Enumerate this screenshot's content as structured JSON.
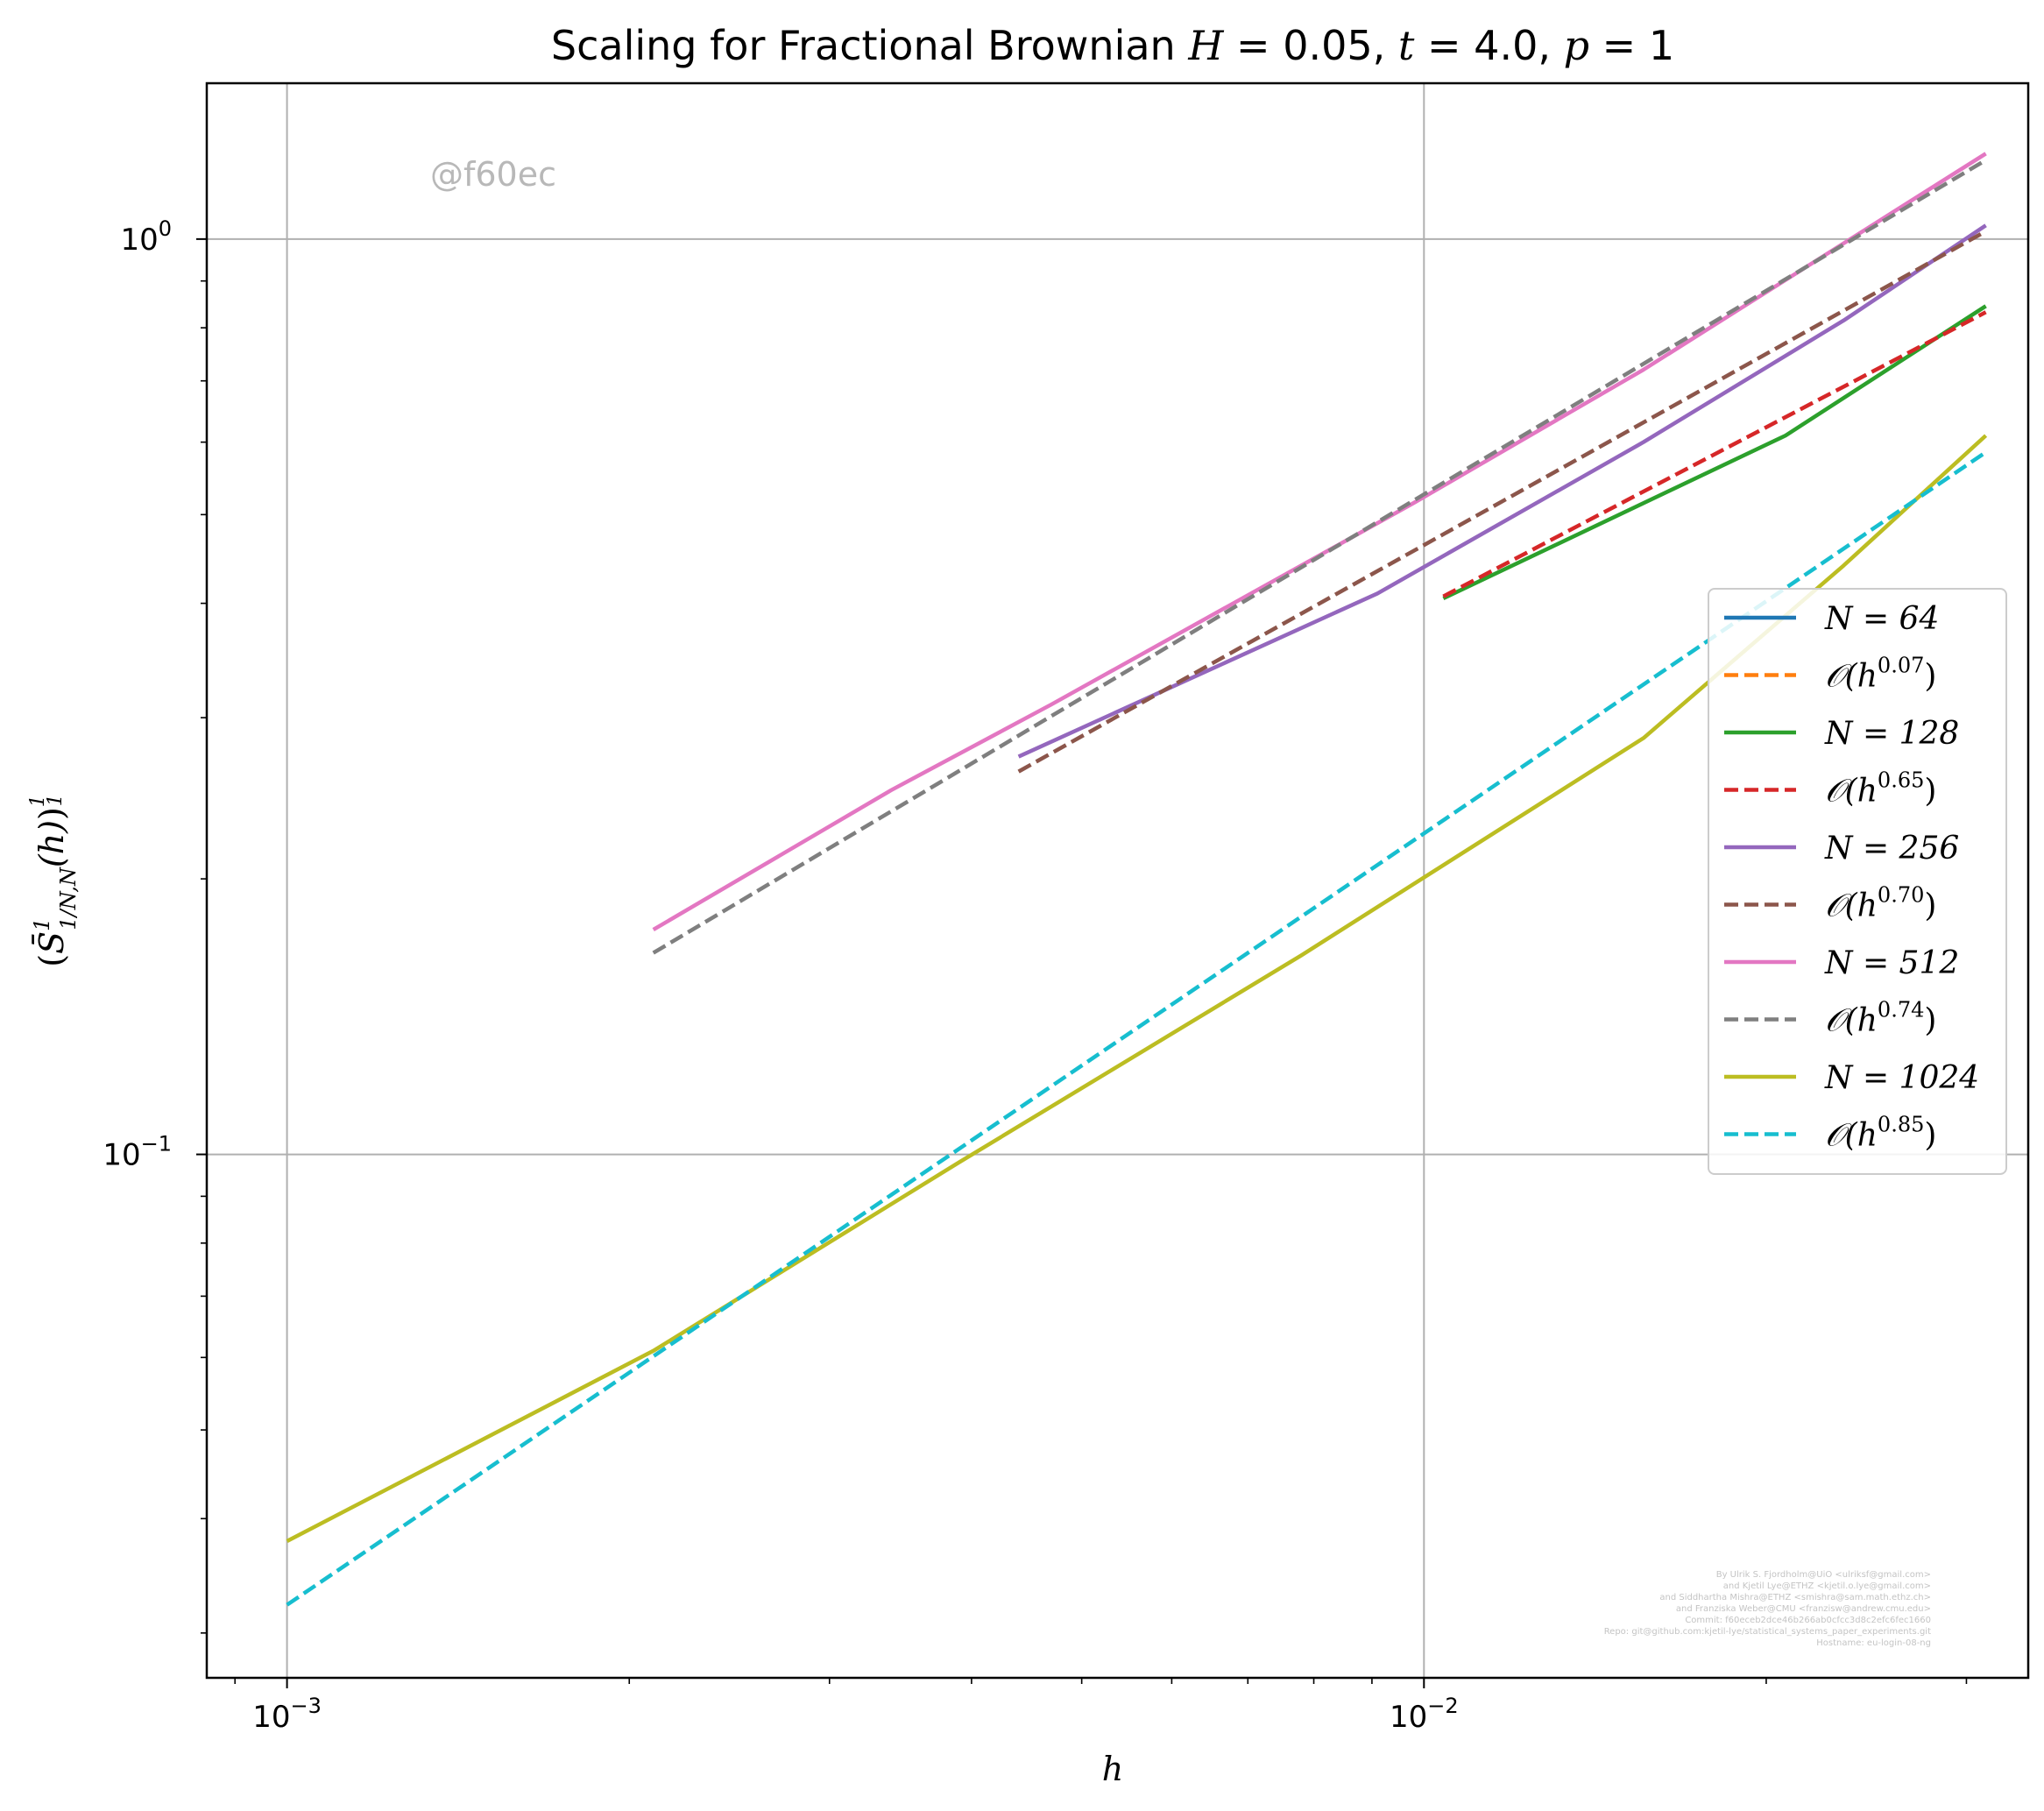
{
  "chart_data": {
    "type": "line",
    "title": "Scaling for Fractional Brownian H = 0.05, t = 4.0, p = 1",
    "xlabel": "h",
    "ylabel": "(S̄¹₁/N,N(h))^(1/1)",
    "xscale": "log",
    "yscale": "log",
    "xlim": [
      0.00085,
      0.034
    ],
    "ylim": [
      0.0268,
      1.48
    ],
    "grid": true,
    "legend_position": "center-right",
    "x_ticks": [
      {
        "value": 0.001,
        "base": "10",
        "exp": "−3"
      },
      {
        "value": 0.01,
        "base": "10",
        "exp": "−2"
      }
    ],
    "y_ticks": [
      {
        "value": 0.1,
        "base": "10",
        "exp": "−1"
      },
      {
        "value": 1.0,
        "base": "10",
        "exp": "0"
      }
    ],
    "series": [
      {
        "name": "N = 64",
        "color": "#1f77b4",
        "dash": false,
        "x": [
          0.03125
        ],
        "y": [
          0.8
        ]
      },
      {
        "name": "O(h^0.07)",
        "color": "#ff7f0e",
        "dash": true,
        "x": [
          0.03125
        ],
        "y": [
          0.8
        ]
      },
      {
        "name": "N = 128",
        "color": "#2ca02c",
        "dash": false,
        "x": [
          0.0104,
          0.0208,
          0.0312
        ],
        "y": [
          0.405,
          0.61,
          0.845
        ]
      },
      {
        "name": "O(h^0.65)",
        "color": "#d62728",
        "dash": true,
        "x": [
          0.0104,
          0.0312
        ],
        "y": [
          0.407,
          0.832
        ]
      },
      {
        "name": "N = 256",
        "color": "#9467bd",
        "dash": false,
        "x": [
          0.0044,
          0.0091,
          0.0156,
          0.0234,
          0.0312
        ],
        "y": [
          0.272,
          0.41,
          0.6,
          0.815,
          1.035
        ]
      },
      {
        "name": "O(h^0.70)",
        "color": "#8c564b",
        "dash": true,
        "x": [
          0.0044,
          0.0312
        ],
        "y": [
          0.262,
          1.02
        ]
      },
      {
        "name": "N = 512",
        "color": "#e377c2",
        "dash": false,
        "x": [
          0.0021,
          0.0034,
          0.0047,
          0.0098,
          0.0156,
          0.0312
        ],
        "y": [
          0.176,
          0.25,
          0.31,
          0.515,
          0.72,
          1.24
        ]
      },
      {
        "name": "O(h^0.74)",
        "color": "#7f7f7f",
        "dash": true,
        "x": [
          0.0021,
          0.0312
        ],
        "y": [
          0.166,
          1.22
        ]
      },
      {
        "name": "N = 1024",
        "color": "#bcbd22",
        "dash": false,
        "x": [
          0.001,
          0.0021,
          0.0039,
          0.0078,
          0.0156,
          0.0234,
          0.0312
        ],
        "y": [
          0.0378,
          0.061,
          0.098,
          0.165,
          0.285,
          0.44,
          0.61
        ]
      },
      {
        "name": "O(h^0.85)",
        "color": "#17becf",
        "dash": true,
        "x": [
          0.001,
          0.0312
        ],
        "y": [
          0.0322,
          0.585
        ]
      }
    ],
    "legend_entries": [
      {
        "pre": "N = ",
        "num": "64",
        "sup": ""
      },
      {
        "pre": "𝒪(h",
        "num": "",
        "sup": "0.07"
      },
      {
        "pre": "N = ",
        "num": "128",
        "sup": ""
      },
      {
        "pre": "𝒪(h",
        "num": "",
        "sup": "0.65"
      },
      {
        "pre": "N = ",
        "num": "256",
        "sup": ""
      },
      {
        "pre": "𝒪(h",
        "num": "",
        "sup": "0.70"
      },
      {
        "pre": "N = ",
        "num": "512",
        "sup": ""
      },
      {
        "pre": "𝒪(h",
        "num": "",
        "sup": "0.74"
      },
      {
        "pre": "N = ",
        "num": "1024",
        "sup": ""
      },
      {
        "pre": "𝒪(h",
        "num": "",
        "sup": "0.85"
      }
    ],
    "watermark": "@f60ec",
    "credits": [
      "By Ulrik S. Fjordholm@UiO <ulriksf@gmail.com>",
      "and Kjetil Lye@ETHZ <kjetil.o.lye@gmail.com>",
      "and Siddhartha Mishra@ETHZ <smishra@sam.math.ethz.ch>",
      "and Franziska Weber@CMU <franzisw@andrew.cmu.edu>",
      "Commit: f60eceb2dce46b266ab0cfcc3d8c2efc6fec1660",
      "Repo: git@github.com:kjetil-lye/statistical_systems_paper_experiments.git",
      "Hostname: eu-login-08-ng"
    ]
  }
}
